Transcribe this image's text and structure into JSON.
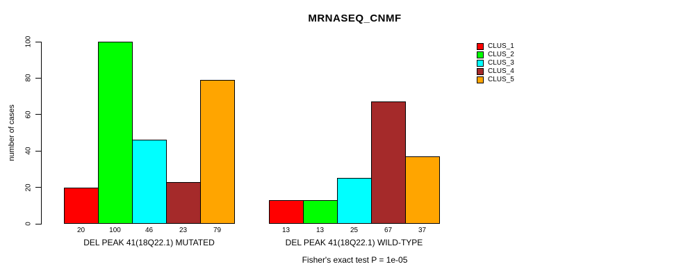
{
  "chart_data": {
    "type": "bar",
    "title": "MRNASEQ_CNMF",
    "ylabel": "number of cases",
    "xlabel": "",
    "ylim": [
      0,
      100
    ],
    "yticks": [
      0,
      20,
      40,
      60,
      80,
      100
    ],
    "grid": false,
    "legend_position": "right",
    "bar_value_labels": true,
    "categories": [
      "DEL PEAK 41(18Q22.1) MUTATED",
      "DEL PEAK 41(18Q22.1) WILD-TYPE"
    ],
    "series": [
      {
        "name": "CLUS_1",
        "color": "#ff0000",
        "values": [
          20,
          13
        ]
      },
      {
        "name": "CLUS_2",
        "color": "#00ff00",
        "values": [
          100,
          13
        ]
      },
      {
        "name": "CLUS_3",
        "color": "#00ffff",
        "values": [
          46,
          25
        ]
      },
      {
        "name": "CLUS_4",
        "color": "#a52a2a",
        "values": [
          23,
          67
        ]
      },
      {
        "name": "CLUS_5",
        "color": "#ffa500",
        "values": [
          79,
          37
        ]
      }
    ],
    "annotation": "Fisher's exact test P = 1e-05"
  }
}
